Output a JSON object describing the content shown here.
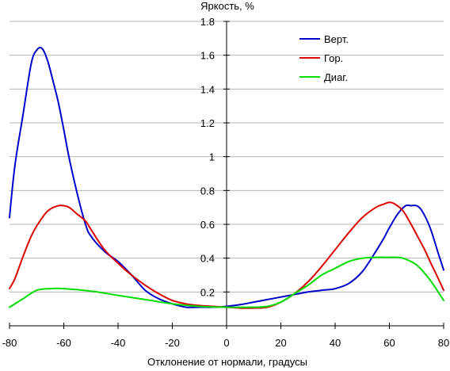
{
  "chart_data": {
    "type": "line",
    "title": "",
    "ylabel": "Яркость, %",
    "xlabel": "Отклонение от нормали, градусы",
    "xlim": [
      -80,
      80
    ],
    "ylim": [
      0,
      1.8
    ],
    "x_ticks": [
      -80,
      -60,
      -40,
      -20,
      0,
      20,
      40,
      60,
      80
    ],
    "y_ticks": [
      0.2,
      0.4,
      0.6,
      0.8,
      1,
      1.2,
      1.4,
      1.6,
      1.8
    ],
    "x_tick_labels": [
      "-80",
      "-60",
      "-40",
      "-20",
      "0",
      "20",
      "40",
      "60",
      "80"
    ],
    "y_tick_labels": [
      "0.2",
      "0.4",
      "0.6",
      "0.8",
      "1",
      "1.2",
      "1.4",
      "1.6",
      "1.8"
    ],
    "grid": "horizontal",
    "legend_position": "top-right",
    "series": [
      {
        "name": "Верт.",
        "color": "#0000cc",
        "x": [
          -80,
          -78,
          -75,
          -72,
          -70,
          -68,
          -66,
          -64,
          -62,
          -60,
          -58,
          -55,
          -52,
          -50,
          -45,
          -40,
          -35,
          -30,
          -25,
          -20,
          -15,
          -10,
          -5,
          0,
          5,
          10,
          15,
          20,
          25,
          30,
          35,
          40,
          45,
          50,
          55,
          58,
          60,
          63,
          66,
          68,
          70,
          72,
          75,
          78,
          80
        ],
        "y": [
          0.64,
          0.95,
          1.25,
          1.55,
          1.63,
          1.64,
          1.57,
          1.45,
          1.32,
          1.16,
          0.99,
          0.78,
          0.6,
          0.53,
          0.44,
          0.38,
          0.3,
          0.21,
          0.16,
          0.13,
          0.11,
          0.11,
          0.11,
          0.115,
          0.125,
          0.14,
          0.155,
          0.17,
          0.185,
          0.2,
          0.21,
          0.22,
          0.25,
          0.32,
          0.44,
          0.52,
          0.58,
          0.66,
          0.71,
          0.71,
          0.71,
          0.68,
          0.58,
          0.43,
          0.33
        ]
      },
      {
        "name": "Гор.",
        "color": "#dd0000",
        "x": [
          -80,
          -78,
          -75,
          -72,
          -70,
          -67,
          -65,
          -62,
          -60,
          -58,
          -55,
          -52,
          -50,
          -45,
          -40,
          -35,
          -30,
          -25,
          -20,
          -15,
          -10,
          -5,
          0,
          5,
          10,
          15,
          20,
          25,
          30,
          35,
          40,
          45,
          50,
          55,
          58,
          60,
          62,
          65,
          68,
          70,
          73,
          75,
          78,
          80
        ],
        "y": [
          0.22,
          0.28,
          0.41,
          0.53,
          0.59,
          0.66,
          0.69,
          0.71,
          0.71,
          0.7,
          0.66,
          0.62,
          0.57,
          0.45,
          0.37,
          0.3,
          0.24,
          0.19,
          0.15,
          0.13,
          0.12,
          0.115,
          0.11,
          0.105,
          0.105,
          0.11,
          0.14,
          0.19,
          0.26,
          0.35,
          0.45,
          0.55,
          0.64,
          0.7,
          0.72,
          0.73,
          0.72,
          0.68,
          0.6,
          0.54,
          0.45,
          0.38,
          0.28,
          0.21
        ]
      },
      {
        "name": "Диаг.",
        "color": "#00dd00",
        "x": [
          -80,
          -75,
          -70,
          -65,
          -60,
          -50,
          -40,
          -30,
          -20,
          -10,
          0,
          10,
          15,
          20,
          25,
          30,
          35,
          40,
          45,
          50,
          55,
          60,
          62,
          65,
          70,
          75,
          80
        ],
        "y": [
          0.11,
          0.16,
          0.21,
          0.22,
          0.22,
          0.205,
          0.18,
          0.155,
          0.13,
          0.115,
          0.11,
          0.11,
          0.115,
          0.14,
          0.19,
          0.24,
          0.3,
          0.34,
          0.38,
          0.4,
          0.405,
          0.405,
          0.405,
          0.4,
          0.36,
          0.27,
          0.15
        ]
      }
    ]
  }
}
